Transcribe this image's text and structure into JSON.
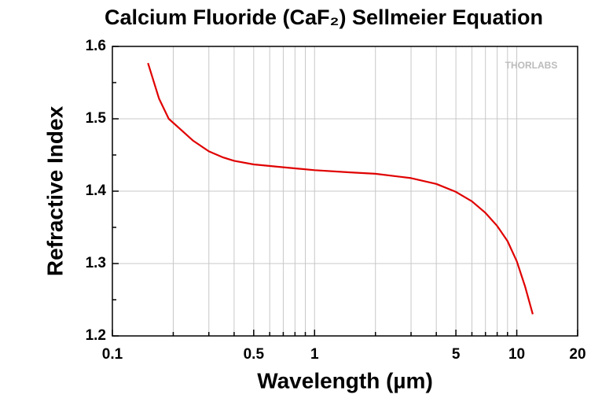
{
  "chart_data": {
    "type": "line",
    "title": "Calcium Fluoride (CaF₂) Sellmeier Equation",
    "watermark": "THORLABS",
    "x_label": "Wavelength (µm)",
    "y_label": "Refractive Index",
    "xscale": "log",
    "x": [
      0.15,
      0.17,
      0.19,
      0.22,
      0.25,
      0.3,
      0.35,
      0.4,
      0.5,
      0.7,
      1,
      1.5,
      2,
      3,
      4,
      5,
      6,
      7,
      8,
      9,
      10,
      11,
      12
    ],
    "series": [
      {
        "name": "CaF2",
        "color": "#e00000",
        "values": [
          1.577,
          1.528,
          1.5,
          1.484,
          1.47,
          1.455,
          1.447,
          1.442,
          1.437,
          1.433,
          1.429,
          1.426,
          1.424,
          1.418,
          1.41,
          1.399,
          1.386,
          1.37,
          1.352,
          1.331,
          1.303,
          1.268,
          1.23
        ]
      }
    ],
    "xlim": [
      0.1,
      20
    ],
    "xticks": [
      0.1,
      0.5,
      1,
      5,
      10,
      20
    ],
    "xminorticks": [
      0.2,
      0.3,
      0.4,
      0.6,
      0.7,
      0.8,
      0.9,
      2,
      3,
      4,
      6,
      7,
      8,
      9
    ],
    "ylim": [
      1.2,
      1.6
    ],
    "yticks": [
      1.2,
      1.3,
      1.4,
      1.5,
      1.6
    ],
    "yminorticks": [
      1.25,
      1.35,
      1.45,
      1.55
    ],
    "grid": true
  }
}
